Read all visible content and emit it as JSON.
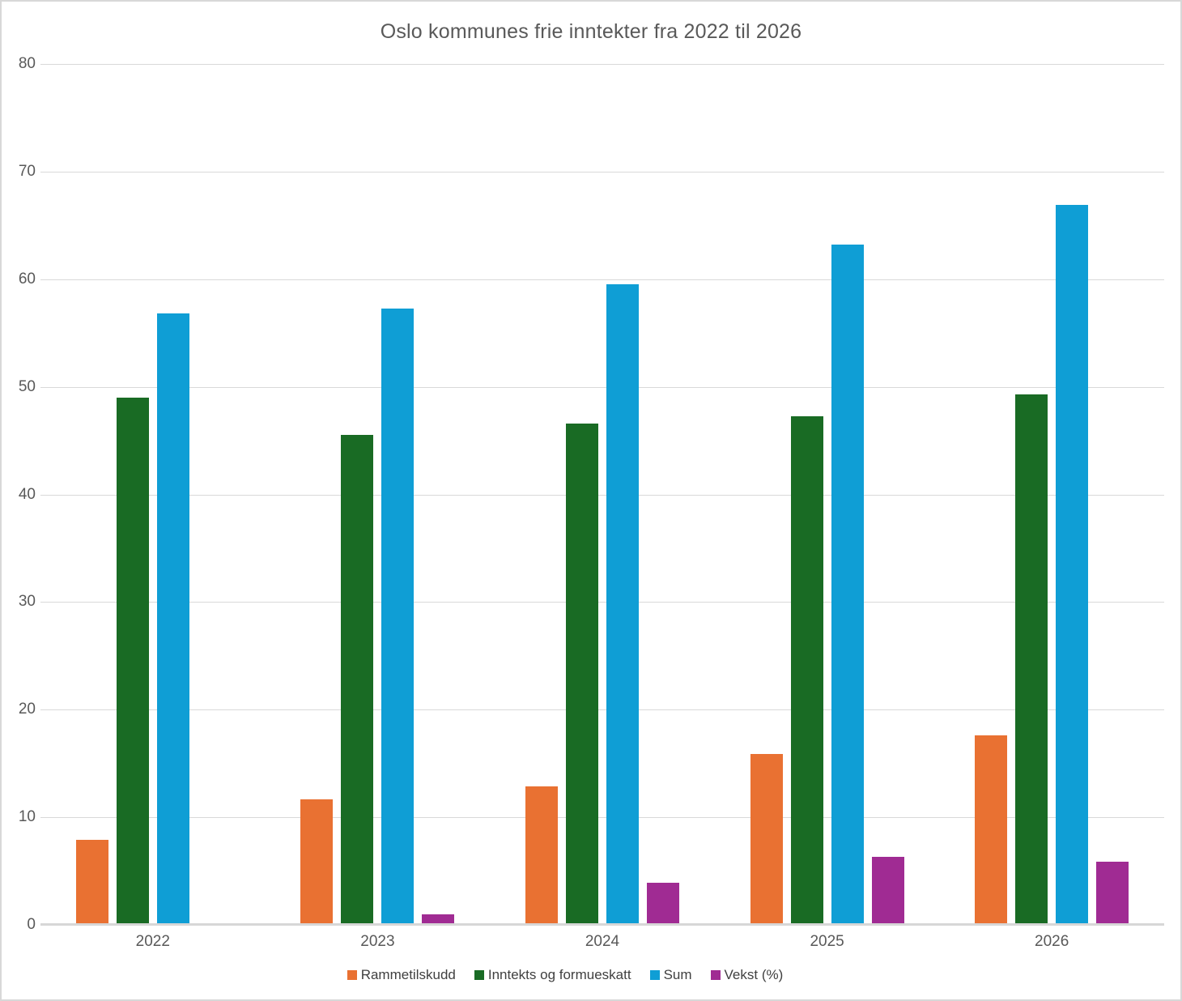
{
  "chart_data": {
    "type": "bar",
    "title": "Oslo kommunes frie inntekter fra 2022 til 2026",
    "categories": [
      "2022",
      "2023",
      "2024",
      "2025",
      "2026"
    ],
    "series": [
      {
        "name": "Rammetilskudd",
        "color": "#E97132",
        "values": [
          7.9,
          11.7,
          12.9,
          15.9,
          17.6
        ]
      },
      {
        "name": "Inntekts og formueskatt",
        "color": "#196B24",
        "values": [
          49.0,
          45.5,
          46.6,
          47.3,
          49.3
        ]
      },
      {
        "name": "Sum",
        "color": "#0F9ED5",
        "values": [
          56.8,
          57.3,
          59.5,
          63.2,
          66.9
        ]
      },
      {
        "name": "Vekst (%)",
        "color": "#A02B93",
        "values": [
          null,
          1.0,
          3.9,
          6.3,
          5.9
        ]
      }
    ],
    "ylim": [
      0,
      80
    ],
    "yticks": [
      0,
      10,
      20,
      30,
      40,
      50,
      60,
      70,
      80
    ],
    "grid": true,
    "legend_position": "bottom",
    "styles": {
      "background": "#FFFFFF",
      "border_color": "#D8D8D8",
      "text_color": "#595959",
      "legend_text_color": "#404040",
      "gridline_color": "#D9D9D9",
      "axisline_color": "#D7D7D7"
    }
  }
}
